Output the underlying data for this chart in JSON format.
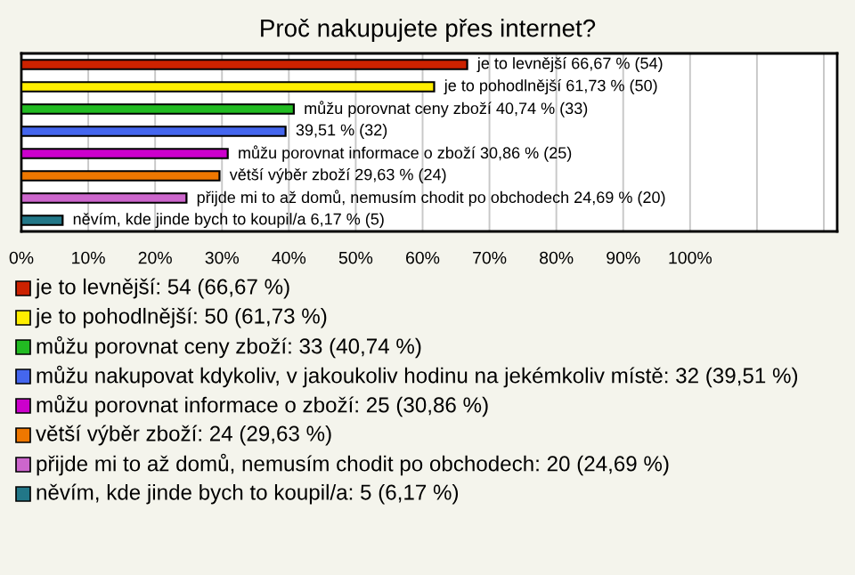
{
  "chart_data": {
    "type": "bar",
    "orientation": "horizontal",
    "title": "Proč nakupujete přes internet?",
    "categories": [
      null,
      null,
      null,
      null,
      null,
      null,
      null,
      null
    ],
    "values": [
      66.67,
      61.73,
      40.74,
      39.51,
      30.86,
      29.63,
      24.69,
      6.17
    ],
    "colors": [
      "#cc2200",
      "#ffee00",
      "#22bb22",
      "#4466ee",
      "#cc00cc",
      "#ee7700",
      "#cc66cc",
      "#227788"
    ],
    "value_labels": [
      "je to levnější 66,67 % (54)",
      "je to pohodlnější 61,73 % (50)",
      "můžu porovnat ceny zboží 40,74 % (33)",
      "39,51 % (32)",
      "můžu porovnat informace o zboží 30,86 % (25)",
      "větší výběr zboží 29,63 % (24)",
      "přijde mi to až domů, nemusím chodit po obchodech 24,69 % (20)",
      "něvím, kde jinde bych to koupil/a 6,17 % (5)"
    ],
    "annotations": [
      "je to levnější: 54 (66,67 %)",
      "je to pohodlnější: 50 (61,73 %)",
      "můžu porovnat ceny zboží: 33 (40,74 %)",
      "můžu nakupovat kdykoliv, v jakoukoliv hodinu na jekémkoliv místě: 32 (39,51 %)",
      "můžu porovnat informace o zboží: 25 (30,86 %)",
      "větší výběr zboží: 24 (29,63 %)",
      "přijde mi to až domů, nemusím chodit po obchodech: 20 (24,69 %)",
      "něvím, kde jinde bych to koupil/a: 5 (6,17 %)"
    ],
    "xlim": [
      0,
      122
    ],
    "xticks": [
      {
        "value": 0,
        "label": "0%"
      },
      {
        "value": 10,
        "label": "10%"
      },
      {
        "value": 20,
        "label": "20%"
      },
      {
        "value": 30,
        "label": "30%"
      },
      {
        "value": 40,
        "label": "40%"
      },
      {
        "value": 50,
        "label": "50%"
      },
      {
        "value": 60,
        "label": "60%"
      },
      {
        "value": 70,
        "label": "70%"
      },
      {
        "value": 80,
        "label": "80%"
      },
      {
        "value": 90,
        "label": "90%"
      },
      {
        "value": 100,
        "label": "100%"
      },
      {
        "value": 110,
        "label": null
      },
      {
        "value": 120,
        "label": null
      }
    ],
    "grid": "x",
    "tick_labels": "x"
  }
}
